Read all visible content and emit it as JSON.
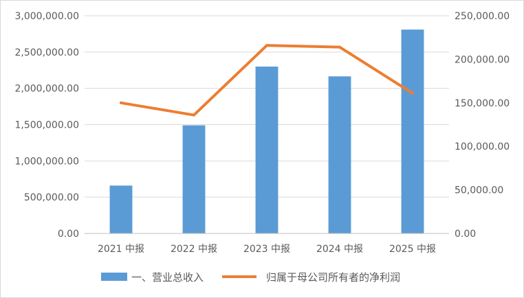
{
  "chart_data": {
    "type": "bar",
    "title": "",
    "xlabel": "",
    "ylabel": "",
    "categories": [
      "2021 中报",
      "2022 中报",
      "2023 中报",
      "2024 中报",
      "2025 中报"
    ],
    "series": [
      {
        "name": "一、营业总收入",
        "type": "bar",
        "axis": "left",
        "color": "#5B9BD5",
        "values": [
          660000,
          1490000,
          2300000,
          2165000,
          2810000
        ]
      },
      {
        "name": "归属于母公司所有者的净利润",
        "type": "line",
        "axis": "right",
        "color": "#ED7D31",
        "values": [
          150000,
          136000,
          216000,
          214000,
          161000
        ]
      }
    ],
    "ylim": [
      0,
      3000000
    ],
    "y2lim": [
      0,
      250000
    ],
    "yticks": [
      "0.00",
      "500,000.00",
      "1,000,000.00",
      "1,500,000.00",
      "2,000,000.00",
      "2,500,000.00",
      "3,000,000.00"
    ],
    "y2ticks": [
      "0.00",
      "50,000.00",
      "100,000.00",
      "150,000.00",
      "200,000.00",
      "250,000.00"
    ],
    "grid": true,
    "legend": "bottom"
  }
}
